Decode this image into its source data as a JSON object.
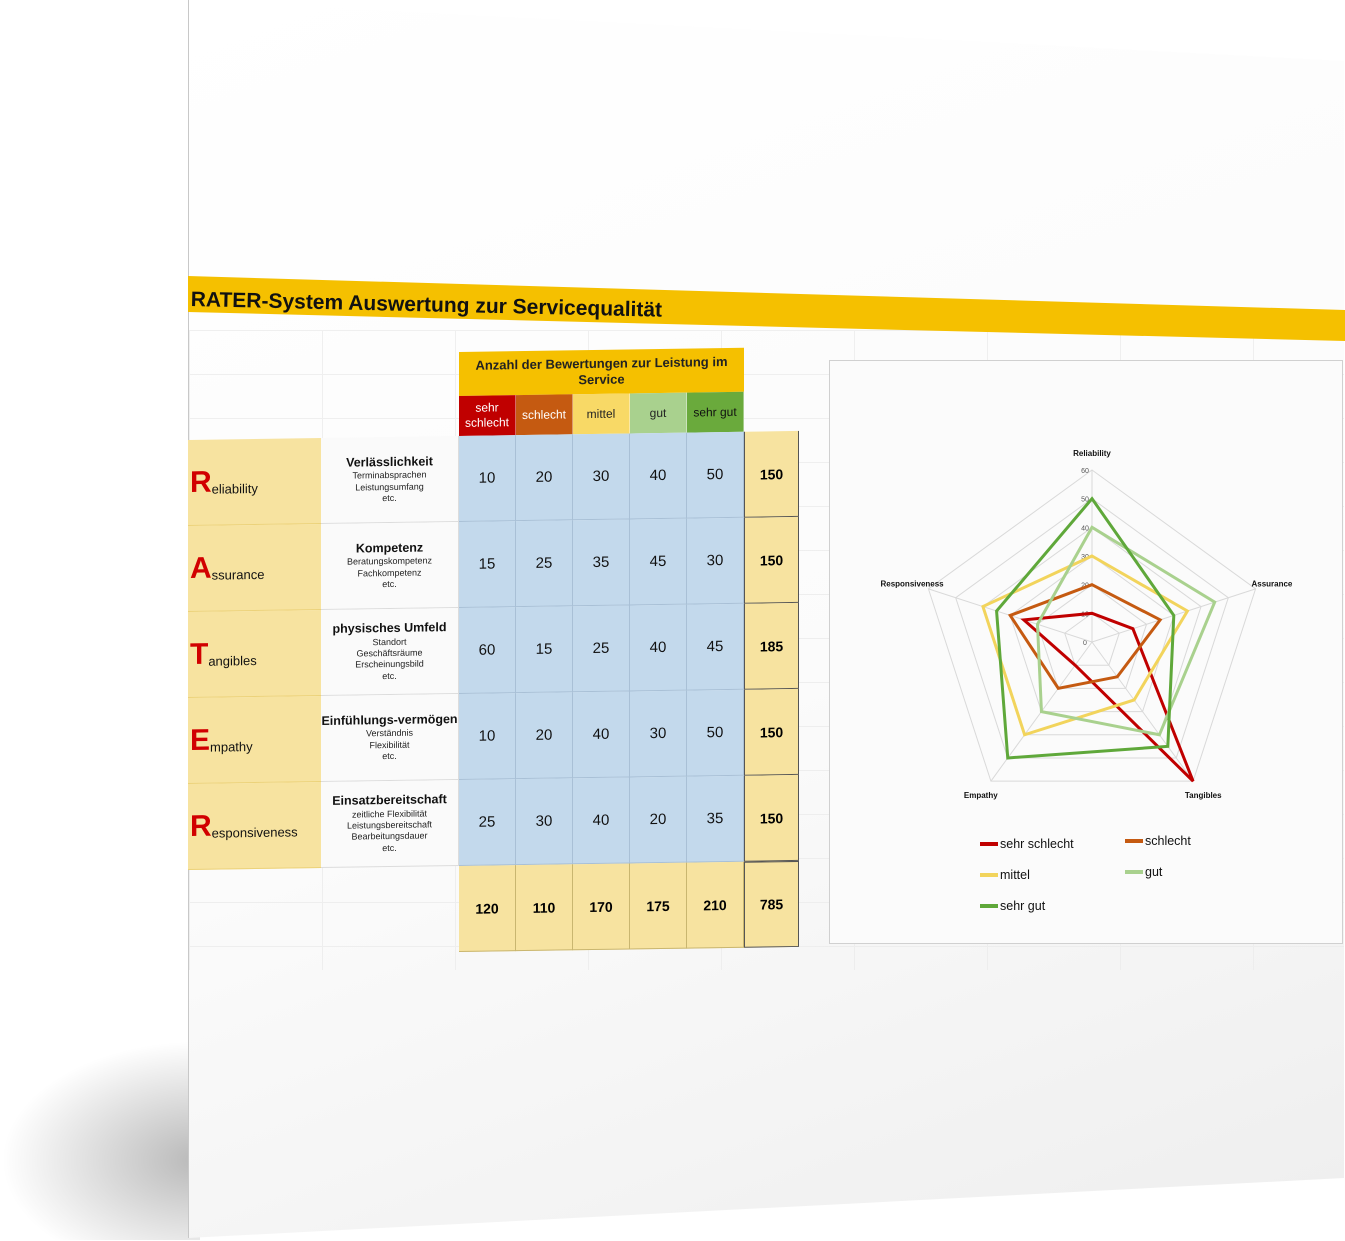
{
  "title": "RATER-System Auswertung zur Servicequalität",
  "table": {
    "header": "Anzahl der Bewertungen zur Leistung im Service",
    "categories": [
      {
        "label": "sehr schlecht",
        "bg": "#c00000",
        "fg": "#ffffff"
      },
      {
        "label": "schlecht",
        "bg": "#c55a11",
        "fg": "#ffffff"
      },
      {
        "label": "mittel",
        "bg": "#f8d966",
        "fg": "#222222"
      },
      {
        "label": "gut",
        "bg": "#a9d18e",
        "fg": "#222222"
      },
      {
        "label": "sehr gut",
        "bg": "#6aaa3c",
        "fg": "#111111"
      }
    ],
    "rows": [
      {
        "letter": "R",
        "rest": "eliability",
        "name": "Verlässlichkeit",
        "desc": [
          "Terminabsprachen",
          "Leistungsumfang",
          "etc."
        ],
        "values": [
          10,
          20,
          30,
          40,
          50
        ],
        "total": "150"
      },
      {
        "letter": "A",
        "rest": "ssurance",
        "name": "Kompetenz",
        "desc": [
          "Beratungskompetenz",
          "Fachkompetenz",
          "etc."
        ],
        "values": [
          15,
          25,
          35,
          45,
          30
        ],
        "total": "150"
      },
      {
        "letter": "T",
        "rest": "angibles",
        "name": "physisches Umfeld",
        "desc": [
          "Standort",
          "Geschäftsräume",
          "Erscheinungsbild",
          "etc."
        ],
        "values": [
          60,
          15,
          25,
          40,
          45
        ],
        "total": "185"
      },
      {
        "letter": "E",
        "rest": "mpathy",
        "name": "Einfühlungs-vermögen",
        "desc": [
          "Verständnis",
          "Flexibilität",
          "etc."
        ],
        "values": [
          10,
          20,
          40,
          30,
          50
        ],
        "total": "150"
      },
      {
        "letter": "R",
        "rest": "esponsiveness",
        "name": "Einsatzbereitschaft",
        "desc": [
          "zeitliche Flexibilität",
          "Leistungsbereitschaft",
          "Bearbeitungsdauer",
          "etc."
        ],
        "values": [
          25,
          30,
          40,
          20,
          35
        ],
        "total": "150"
      }
    ],
    "column_totals": [
      "120",
      "110",
      "170",
      "175",
      "210"
    ],
    "grand_total": "785"
  },
  "chart_data": {
    "type": "radar",
    "axes": [
      "Reliability",
      "Assurance",
      "Tangibles",
      "Empathy",
      "Responsiveness"
    ],
    "ticks": [
      "0",
      "10",
      "20",
      "30",
      "40",
      "50",
      "60"
    ],
    "rmax": 60,
    "series": [
      {
        "name": "sehr schlecht",
        "color": "#c00000",
        "values": [
          10,
          15,
          60,
          10,
          25
        ]
      },
      {
        "name": "schlecht",
        "color": "#c55a11",
        "values": [
          20,
          25,
          15,
          20,
          30
        ]
      },
      {
        "name": "mittel",
        "color": "#f2d45c",
        "values": [
          30,
          35,
          25,
          40,
          40
        ]
      },
      {
        "name": "gut",
        "color": "#a9d18e",
        "values": [
          40,
          45,
          40,
          30,
          20
        ]
      },
      {
        "name": "sehr gut",
        "color": "#5fa83a",
        "values": [
          50,
          30,
          45,
          50,
          35
        ]
      }
    ],
    "legend_position": "bottom"
  }
}
